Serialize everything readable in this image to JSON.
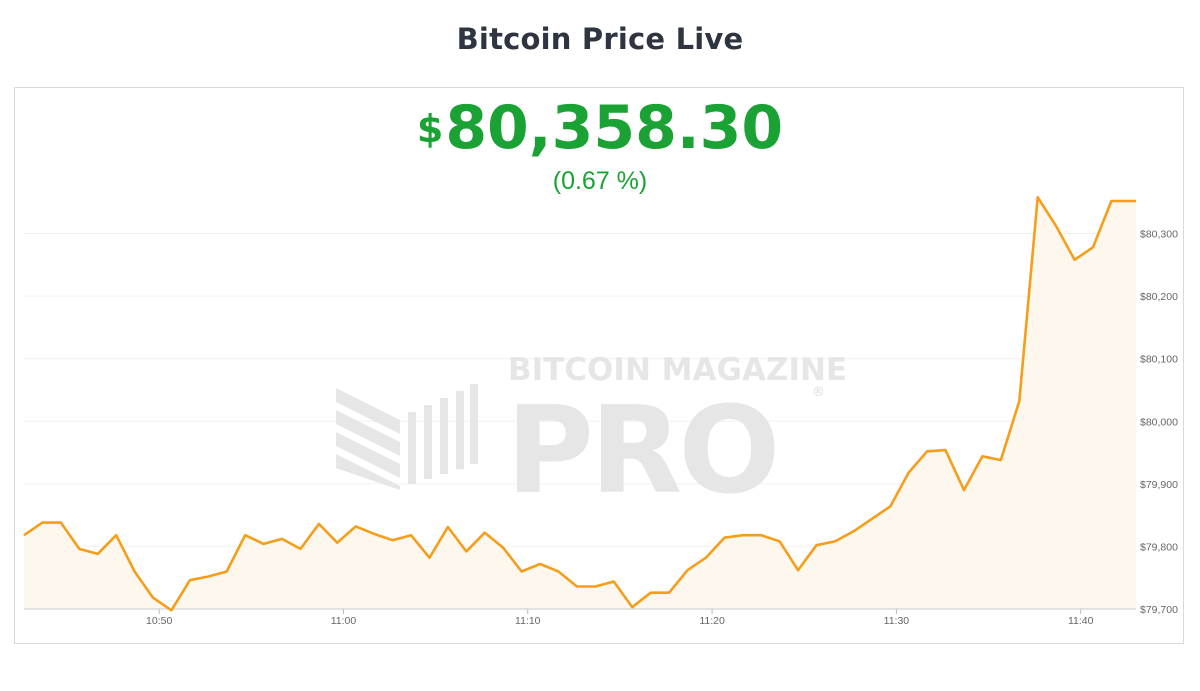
{
  "page": {
    "title": "Bitcoin Price Live",
    "price_currency": "$",
    "price_value": "80,358.30",
    "price_change": "(0.67 %)"
  },
  "watermark": {
    "line1": "BITCOIN MAGAZINE",
    "line2": "PRO",
    "mark": "®"
  },
  "colors": {
    "line": "#f59e1b",
    "area": "#fef6ea",
    "price": "#1aa334",
    "title": "#2e3440",
    "grid": "#f0f0f0",
    "watermark": "#e6e6e6"
  },
  "chart_data": {
    "type": "area",
    "title": "",
    "xlabel": "",
    "ylabel": "",
    "x_ticks": [
      "10:50",
      "11:00",
      "11:10",
      "11:20",
      "11:30",
      "11:40"
    ],
    "y_ticks": [
      "$79,700",
      "$79,800",
      "$79,900",
      "$80,000",
      "$80,100",
      "$80,200",
      "$80,300"
    ],
    "ylim": [
      79700,
      80360
    ],
    "xlim": [
      "10:42:40",
      "11:43:00"
    ],
    "grid": true,
    "y_axis_position": "right",
    "legend": "none",
    "series": [
      {
        "x": [
          "10:42:40",
          "10:43:40",
          "10:44:40",
          "10:45:40",
          "10:46:40",
          "10:47:40",
          "10:48:40",
          "10:49:40",
          "10:50:40",
          "10:51:40",
          "10:52:40",
          "10:53:40",
          "10:54:40",
          "10:55:40",
          "10:56:40",
          "10:57:40",
          "10:58:40",
          "10:59:40",
          "11:00:40",
          "11:01:40",
          "11:02:40",
          "11:03:40",
          "11:04:40",
          "11:05:40",
          "11:06:40",
          "11:07:40",
          "11:08:40",
          "11:09:40",
          "11:10:40",
          "11:11:40",
          "11:12:40",
          "11:13:40",
          "11:14:40",
          "11:15:40",
          "11:16:40",
          "11:17:40",
          "11:18:40",
          "11:19:40",
          "11:20:40",
          "11:21:40",
          "11:22:40",
          "11:23:40",
          "11:24:40",
          "11:25:40",
          "11:26:40",
          "11:27:40",
          "11:28:40",
          "11:29:40",
          "11:30:40",
          "11:31:40",
          "11:32:40",
          "11:33:40",
          "11:34:40",
          "11:35:40",
          "11:36:40",
          "11:37:40",
          "11:38:40",
          "11:39:40",
          "11:40:40",
          "11:41:40",
          "11:42:40",
          "11:43:00"
        ],
        "values": [
          79818,
          79838,
          79838,
          79796,
          79788,
          79818,
          79760,
          79718,
          79698,
          79746,
          79752,
          79760,
          79818,
          79804,
          79812,
          79796,
          79836,
          79806,
          79832,
          79820,
          79810,
          79818,
          79782,
          79831,
          79792,
          79822,
          79798,
          79760,
          79772,
          79760,
          79736,
          79736,
          79744,
          79703,
          79726,
          79726,
          79762,
          79782,
          79814,
          79818,
          79818,
          79808,
          79762,
          79802,
          79808,
          79824,
          79844,
          79864,
          79918,
          79952,
          79954,
          79890,
          79944,
          79938,
          80032,
          80358,
          80312,
          80258,
          80278,
          80352,
          80352,
          80352
        ]
      }
    ]
  }
}
